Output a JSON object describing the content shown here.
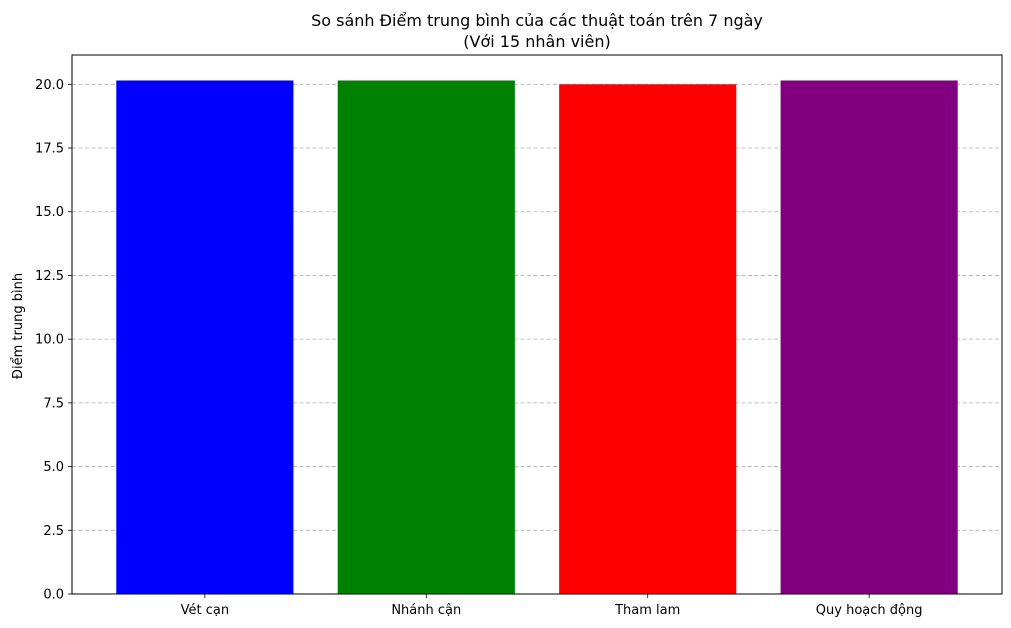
{
  "chart_data": {
    "type": "bar",
    "title": "So sánh Điểm trung bình của các thuật toán trên 7 ngày",
    "subtitle": "(Với 15 nhân viên)",
    "xlabel": "",
    "ylabel": "Điểm trung bình",
    "categories": [
      "Vét cạn",
      "Nhánh cận",
      "Tham lam",
      "Quy hoạch động"
    ],
    "values": [
      20.15,
      20.15,
      20.0,
      20.15
    ],
    "colors": [
      "#0000ff",
      "#008000",
      "#ff0000",
      "#800080"
    ],
    "ylim": [
      0,
      21.15
    ],
    "yticks": [
      0.0,
      2.5,
      5.0,
      7.5,
      10.0,
      12.5,
      15.0,
      17.5,
      20.0
    ],
    "ytick_labels": [
      "0.0",
      "2.5",
      "5.0",
      "7.5",
      "10.0",
      "12.5",
      "15.0",
      "17.5",
      "20.0"
    ],
    "grid": "y-dashed",
    "legend": "none"
  }
}
